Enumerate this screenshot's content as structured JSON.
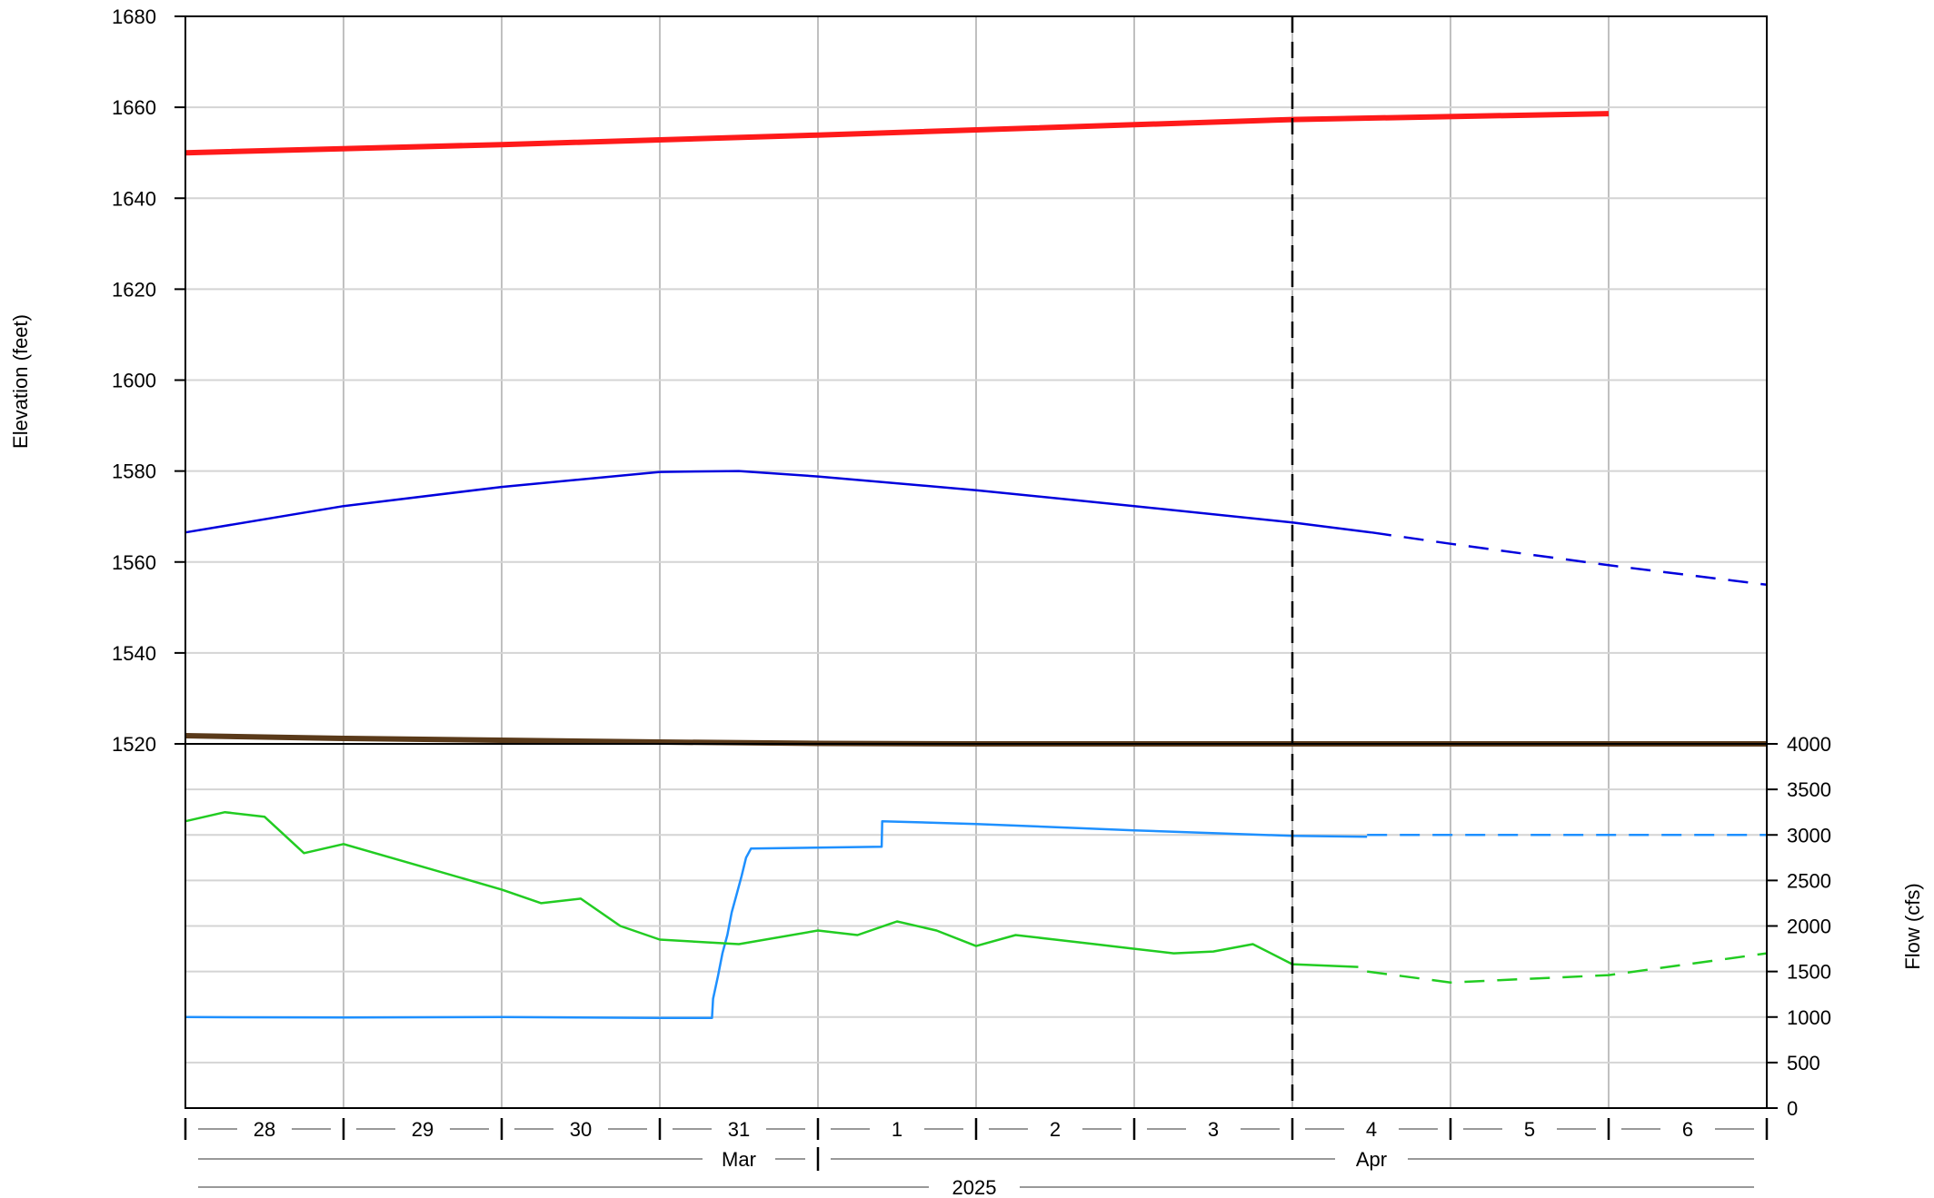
{
  "chart_data": [
    {
      "type": "line",
      "panel": "elevation",
      "ylabel": "Elevation (feet)",
      "ylim": [
        1520,
        1680
      ],
      "y_ticks": [
        1520,
        1540,
        1560,
        1580,
        1600,
        1620,
        1640,
        1660,
        1680
      ],
      "x_domain": [
        "2025-03-28",
        "2025-04-07"
      ],
      "current_date": "2025-04-04",
      "grid": true,
      "series": [
        {
          "color": "#ff1a1a",
          "style": "solid-thick",
          "points": [
            [
              "2025-03-28",
              1650.0
            ],
            [
              "2025-03-30",
              1651.8
            ],
            [
              "2025-04-01",
              1653.9
            ],
            [
              "2025-04-04",
              1657.3
            ],
            [
              "2025-04-06",
              1658.6
            ]
          ]
        },
        {
          "color": "#0000dd",
          "style": "solid",
          "points": [
            [
              "2025-03-28",
              1566.5
            ],
            [
              "2025-03-29",
              1572.3
            ],
            [
              "2025-03-30",
              1576.5
            ],
            [
              "2025-03-31",
              1579.8
            ],
            [
              "2025-03-31T12:00",
              1580.0
            ],
            [
              "2025-04-01",
              1578.8
            ],
            [
              "2025-04-02",
              1575.8
            ],
            [
              "2025-04-03",
              1572.3
            ],
            [
              "2025-04-04",
              1568.7
            ],
            [
              "2025-04-04T12:00",
              1566.5
            ]
          ]
        },
        {
          "color": "#0000dd",
          "style": "dashed",
          "points": [
            [
              "2025-04-04T12:00",
              1566.5
            ],
            [
              "2025-04-05",
              1564.0
            ],
            [
              "2025-04-06",
              1559.3
            ],
            [
              "2025-04-07",
              1555.0
            ]
          ]
        },
        {
          "color": "#5a3a1a",
          "style": "solid-thick",
          "points": [
            [
              "2025-03-28",
              1521.8
            ],
            [
              "2025-03-29",
              1521.2
            ],
            [
              "2025-03-30",
              1520.8
            ],
            [
              "2025-03-31",
              1520.4
            ],
            [
              "2025-04-01",
              1520.1
            ],
            [
              "2025-04-02",
              1520.0
            ],
            [
              "2025-04-07",
              1520.0
            ]
          ]
        }
      ]
    },
    {
      "type": "line",
      "panel": "flow",
      "ylabel": "Flow (cfs)",
      "ylim": [
        0,
        4000
      ],
      "y_ticks": [
        0,
        500,
        1000,
        1500,
        2000,
        2500,
        3000,
        3500,
        4000
      ],
      "x_domain": [
        "2025-03-28",
        "2025-04-07"
      ],
      "grid": true,
      "series": [
        {
          "color": "#1e90ff",
          "style": "solid",
          "points": [
            [
              "2025-03-28",
              1000
            ],
            [
              "2025-03-29",
              995
            ],
            [
              "2025-03-30",
              1000
            ],
            [
              "2025-03-31",
              990
            ],
            [
              "2025-03-31T07:55",
              990
            ],
            [
              "2025-03-31T08:05",
              1200
            ],
            [
              "2025-03-31T08:50",
              1450
            ],
            [
              "2025-03-31T09:30",
              1700
            ],
            [
              "2025-03-31T10:15",
              1900
            ],
            [
              "2025-03-31T10:55",
              2150
            ],
            [
              "2025-03-31T11:40",
              2350
            ],
            [
              "2025-03-31T12:25",
              2550
            ],
            [
              "2025-03-31T13:05",
              2750
            ],
            [
              "2025-03-31T13:50",
              2850
            ],
            [
              "2025-04-01T09:40",
              2870
            ],
            [
              "2025-04-01T09:45",
              3150
            ],
            [
              "2025-04-02",
              3120
            ],
            [
              "2025-04-03",
              3050
            ],
            [
              "2025-04-04",
              2990
            ],
            [
              "2025-04-04T11:20",
              2980
            ]
          ]
        },
        {
          "color": "#1e90ff",
          "style": "dashed",
          "points": [
            [
              "2025-04-04T11:20",
              3000
            ],
            [
              "2025-04-07",
              3000
            ]
          ]
        },
        {
          "color": "#22cc22",
          "style": "solid",
          "points": [
            [
              "2025-03-28",
              3150
            ],
            [
              "2025-03-28T06:00",
              3250
            ],
            [
              "2025-03-28T12:00",
              3200
            ],
            [
              "2025-03-28T18:00",
              2800
            ],
            [
              "2025-03-29",
              2900
            ],
            [
              "2025-03-29T12:00",
              2650
            ],
            [
              "2025-03-30",
              2400
            ],
            [
              "2025-03-30T06:00",
              2250
            ],
            [
              "2025-03-30T12:00",
              2300
            ],
            [
              "2025-03-30T18:00",
              2000
            ],
            [
              "2025-03-31",
              1850
            ],
            [
              "2025-03-31T12:00",
              1800
            ],
            [
              "2025-04-01",
              1950
            ],
            [
              "2025-04-01T06:00",
              1900
            ],
            [
              "2025-04-01T12:00",
              2050
            ],
            [
              "2025-04-01T18:00",
              1950
            ],
            [
              "2025-04-02",
              1780
            ],
            [
              "2025-04-02T06:00",
              1900
            ],
            [
              "2025-04-02T12:00",
              1850
            ],
            [
              "2025-04-02T18:00",
              1800
            ],
            [
              "2025-04-03",
              1750
            ],
            [
              "2025-04-03T06:00",
              1700
            ],
            [
              "2025-04-03T12:00",
              1720
            ],
            [
              "2025-04-03T18:00",
              1800
            ],
            [
              "2025-04-04",
              1580
            ],
            [
              "2025-04-04T10:00",
              1550
            ]
          ]
        },
        {
          "color": "#22cc22",
          "style": "dashed",
          "points": [
            [
              "2025-04-04T11:20",
              1500
            ],
            [
              "2025-04-05",
              1380
            ],
            [
              "2025-04-06",
              1460
            ],
            [
              "2025-04-07",
              1700
            ]
          ]
        }
      ]
    }
  ],
  "x_axis": {
    "days": [
      "28",
      "29",
      "30",
      "31",
      "1",
      "2",
      "3",
      "4",
      "5",
      "6"
    ],
    "months": [
      "Mar",
      "Apr"
    ],
    "year": "2025"
  }
}
